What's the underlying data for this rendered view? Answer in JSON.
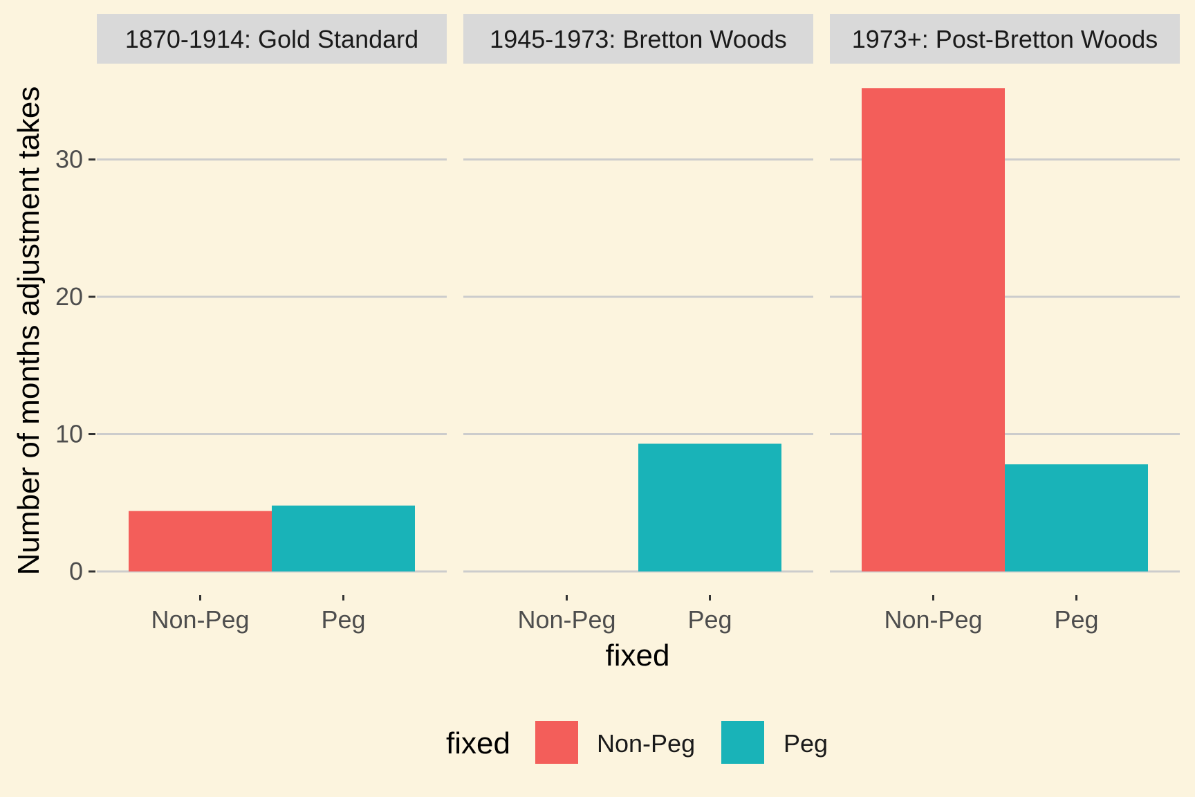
{
  "chart_data": {
    "type": "bar",
    "facets": [
      {
        "title": "1870-1914: Gold Standard",
        "categories": [
          "Non-Peg",
          "Peg"
        ],
        "values": [
          4.4,
          4.8
        ]
      },
      {
        "title": "1945-1973: Bretton Woods",
        "categories": [
          "Non-Peg",
          "Peg"
        ],
        "values": [
          0,
          9.3
        ]
      },
      {
        "title": "1973+: Post-Bretton Woods",
        "categories": [
          "Non-Peg",
          "Peg"
        ],
        "values": [
          35.2,
          7.8
        ]
      }
    ],
    "xlabel": "fixed",
    "ylabel": "Number of months adjustment takes",
    "ylim": [
      0,
      37
    ],
    "yticks": [
      0,
      10,
      20,
      30
    ],
    "grid": true,
    "legend": {
      "title": "fixed",
      "position": "bottom",
      "entries": [
        {
          "name": "Non-Peg",
          "color": "#f35e5a"
        },
        {
          "name": "Peg",
          "color": "#19b3b8"
        }
      ]
    },
    "colors": {
      "background": "#fcf4de",
      "strip_background": "#d9d9d9",
      "gridline": "#cccccc",
      "Non-Peg": "#f35e5a",
      "Peg": "#19b3b8"
    }
  }
}
